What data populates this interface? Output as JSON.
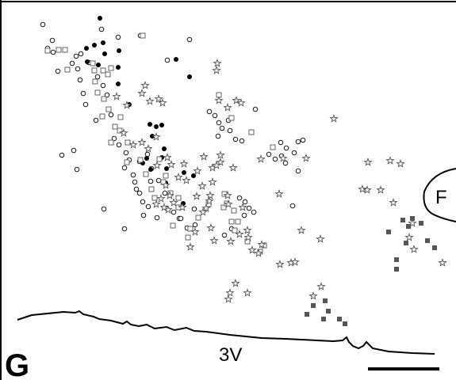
{
  "figure": {
    "panel_label": "G",
    "label_3v": "3V",
    "label_f": "F",
    "colors": {
      "ink": "#000000",
      "outline": "#555555",
      "filled_square": "#555555"
    }
  },
  "legend_markers": [
    "open-circle",
    "filled-circle",
    "open-square",
    "open-star",
    "filled-square"
  ]
}
